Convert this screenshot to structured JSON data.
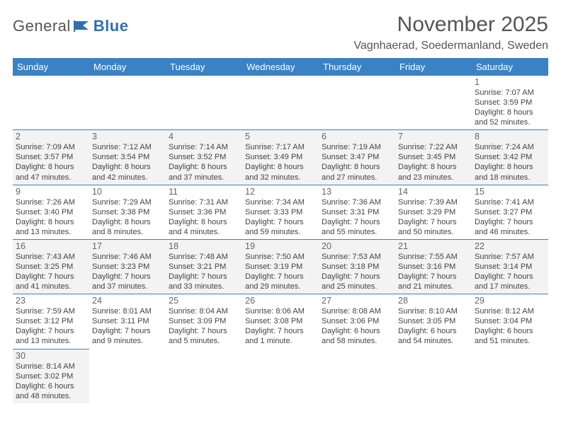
{
  "logo": {
    "general": "General",
    "blue": "Blue"
  },
  "header": {
    "title": "November 2025",
    "location": "Vagnhaerad, Soedermanland, Sweden"
  },
  "colors": {
    "header_bg": "#3a82c4",
    "header_fg": "#ffffff",
    "rule": "#3a82c4",
    "shade": "#f3f3f3",
    "text": "#444444"
  },
  "weekdays": [
    "Sunday",
    "Monday",
    "Tuesday",
    "Wednesday",
    "Thursday",
    "Friday",
    "Saturday"
  ],
  "weeks": [
    [
      null,
      null,
      null,
      null,
      null,
      null,
      {
        "d": "1",
        "sr": "7:07 AM",
        "ss": "3:59 PM",
        "dl": "8 hours and 52 minutes."
      }
    ],
    [
      {
        "d": "2",
        "sr": "7:09 AM",
        "ss": "3:57 PM",
        "dl": "8 hours and 47 minutes.",
        "shade": true
      },
      {
        "d": "3",
        "sr": "7:12 AM",
        "ss": "3:54 PM",
        "dl": "8 hours and 42 minutes.",
        "shade": true
      },
      {
        "d": "4",
        "sr": "7:14 AM",
        "ss": "3:52 PM",
        "dl": "8 hours and 37 minutes.",
        "shade": true
      },
      {
        "d": "5",
        "sr": "7:17 AM",
        "ss": "3:49 PM",
        "dl": "8 hours and 32 minutes.",
        "shade": true
      },
      {
        "d": "6",
        "sr": "7:19 AM",
        "ss": "3:47 PM",
        "dl": "8 hours and 27 minutes.",
        "shade": true
      },
      {
        "d": "7",
        "sr": "7:22 AM",
        "ss": "3:45 PM",
        "dl": "8 hours and 23 minutes.",
        "shade": true
      },
      {
        "d": "8",
        "sr": "7:24 AM",
        "ss": "3:42 PM",
        "dl": "8 hours and 18 minutes.",
        "shade": true
      }
    ],
    [
      {
        "d": "9",
        "sr": "7:26 AM",
        "ss": "3:40 PM",
        "dl": "8 hours and 13 minutes."
      },
      {
        "d": "10",
        "sr": "7:29 AM",
        "ss": "3:38 PM",
        "dl": "8 hours and 8 minutes."
      },
      {
        "d": "11",
        "sr": "7:31 AM",
        "ss": "3:36 PM",
        "dl": "8 hours and 4 minutes."
      },
      {
        "d": "12",
        "sr": "7:34 AM",
        "ss": "3:33 PM",
        "dl": "7 hours and 59 minutes."
      },
      {
        "d": "13",
        "sr": "7:36 AM",
        "ss": "3:31 PM",
        "dl": "7 hours and 55 minutes."
      },
      {
        "d": "14",
        "sr": "7:39 AM",
        "ss": "3:29 PM",
        "dl": "7 hours and 50 minutes."
      },
      {
        "d": "15",
        "sr": "7:41 AM",
        "ss": "3:27 PM",
        "dl": "7 hours and 46 minutes."
      }
    ],
    [
      {
        "d": "16",
        "sr": "7:43 AM",
        "ss": "3:25 PM",
        "dl": "7 hours and 41 minutes.",
        "shade": true
      },
      {
        "d": "17",
        "sr": "7:46 AM",
        "ss": "3:23 PM",
        "dl": "7 hours and 37 minutes.",
        "shade": true
      },
      {
        "d": "18",
        "sr": "7:48 AM",
        "ss": "3:21 PM",
        "dl": "7 hours and 33 minutes.",
        "shade": true
      },
      {
        "d": "19",
        "sr": "7:50 AM",
        "ss": "3:19 PM",
        "dl": "7 hours and 29 minutes.",
        "shade": true
      },
      {
        "d": "20",
        "sr": "7:53 AM",
        "ss": "3:18 PM",
        "dl": "7 hours and 25 minutes.",
        "shade": true
      },
      {
        "d": "21",
        "sr": "7:55 AM",
        "ss": "3:16 PM",
        "dl": "7 hours and 21 minutes.",
        "shade": true
      },
      {
        "d": "22",
        "sr": "7:57 AM",
        "ss": "3:14 PM",
        "dl": "7 hours and 17 minutes.",
        "shade": true
      }
    ],
    [
      {
        "d": "23",
        "sr": "7:59 AM",
        "ss": "3:12 PM",
        "dl": "7 hours and 13 minutes."
      },
      {
        "d": "24",
        "sr": "8:01 AM",
        "ss": "3:11 PM",
        "dl": "7 hours and 9 minutes."
      },
      {
        "d": "25",
        "sr": "8:04 AM",
        "ss": "3:09 PM",
        "dl": "7 hours and 5 minutes."
      },
      {
        "d": "26",
        "sr": "8:06 AM",
        "ss": "3:08 PM",
        "dl": "7 hours and 1 minute."
      },
      {
        "d": "27",
        "sr": "8:08 AM",
        "ss": "3:06 PM",
        "dl": "6 hours and 58 minutes."
      },
      {
        "d": "28",
        "sr": "8:10 AM",
        "ss": "3:05 PM",
        "dl": "6 hours and 54 minutes."
      },
      {
        "d": "29",
        "sr": "8:12 AM",
        "ss": "3:04 PM",
        "dl": "6 hours and 51 minutes."
      }
    ],
    [
      {
        "d": "30",
        "sr": "8:14 AM",
        "ss": "3:02 PM",
        "dl": "6 hours and 48 minutes.",
        "shade": true
      },
      null,
      null,
      null,
      null,
      null,
      null
    ]
  ]
}
